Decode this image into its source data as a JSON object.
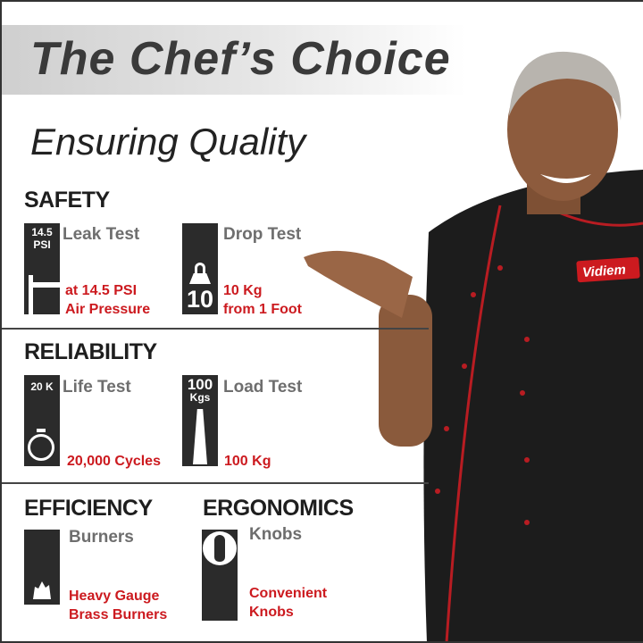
{
  "title": "The Chef’s Choice",
  "subtitle": "Ensuring Quality",
  "brand": "Vidiem",
  "colors": {
    "accent": "#cc1a1f",
    "label": "#6e6e6e",
    "box": "#2b2b2b"
  },
  "sections": [
    {
      "heading": "SAFETY",
      "items": [
        {
          "icon": "pressure-gauge-icon",
          "badge": [
            "14.5",
            "PSI"
          ],
          "label": "Leak Test",
          "detail": [
            "at 14.5 PSI",
            "Air Pressure"
          ]
        },
        {
          "icon": "weight-icon",
          "badge": [
            "10"
          ],
          "label": "Drop Test",
          "detail": [
            "10 Kg",
            "from 1 Foot"
          ]
        }
      ]
    },
    {
      "heading": "RELIABILITY",
      "items": [
        {
          "icon": "stopwatch-icon",
          "badge": [
            "20 K"
          ],
          "label": "Life Test",
          "detail": [
            "20,000 Cycles"
          ]
        },
        {
          "icon": "stacked-weight-icon",
          "badge": [
            "100",
            "Kgs"
          ],
          "label": "Load Test",
          "detail": [
            "100 Kg"
          ]
        }
      ]
    },
    {
      "heading": "EFFICIENCY",
      "items": [
        {
          "icon": "flame-burner-icon",
          "label": "Burners",
          "detail": [
            "Heavy Gauge",
            "Brass Burners"
          ]
        }
      ]
    },
    {
      "heading": "ERGONOMICS",
      "items": [
        {
          "icon": "knob-icon",
          "label": "Knobs",
          "detail": [
            "Convenient",
            "Knobs"
          ]
        }
      ]
    }
  ]
}
